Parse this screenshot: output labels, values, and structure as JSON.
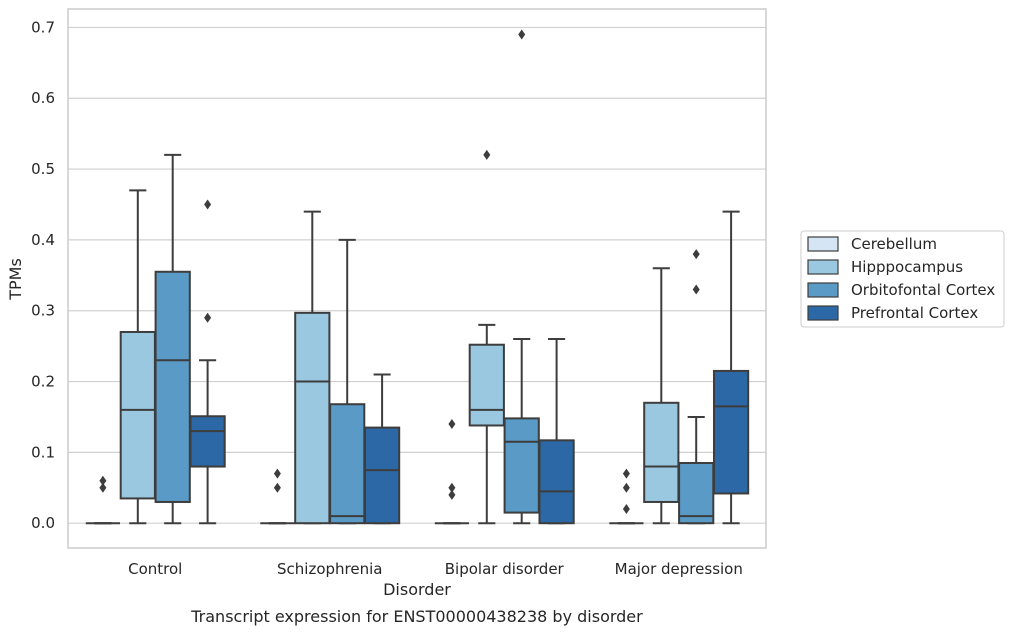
{
  "caption": "Transcript expression for ENST00000438238 by disorder",
  "chart_data": {
    "type": "box",
    "xlabel": "Disorder",
    "ylabel": "TPMs",
    "ylim": [
      -0.035,
      0.726
    ],
    "yticks": [
      "0.0",
      "0.1",
      "0.2",
      "0.3",
      "0.4",
      "0.5",
      "0.6",
      "0.7"
    ],
    "grid": "horizontal",
    "legend_position": "right",
    "categories": [
      "Control",
      "Schizophrenia",
      "Bipolar disorder",
      "Major depression"
    ],
    "series": [
      {
        "name": "Cerebellum",
        "color": "#d6e5f3",
        "boxes": [
          {
            "q1": 0,
            "median": 0,
            "q3": 0,
            "whisker_low": 0,
            "whisker_high": 0,
            "fliers": [
              0.05,
              0.06
            ]
          },
          {
            "q1": 0,
            "median": 0,
            "q3": 0,
            "whisker_low": 0,
            "whisker_high": 0,
            "fliers": [
              0.05,
              0.07
            ]
          },
          {
            "q1": 0,
            "median": 0,
            "q3": 0,
            "whisker_low": 0,
            "whisker_high": 0,
            "fliers": [
              0.04,
              0.05,
              0.14
            ]
          },
          {
            "q1": 0,
            "median": 0,
            "q3": 0,
            "whisker_low": 0,
            "whisker_high": 0,
            "fliers": [
              0.02,
              0.05,
              0.07
            ]
          }
        ]
      },
      {
        "name": "Hipppocampus",
        "color": "#9ac8e0",
        "boxes": [
          {
            "q1": 0.035,
            "median": 0.16,
            "q3": 0.27,
            "whisker_low": 0,
            "whisker_high": 0.47,
            "fliers": []
          },
          {
            "q1": 0,
            "median": 0.2,
            "q3": 0.297,
            "whisker_low": 0,
            "whisker_high": 0.44,
            "fliers": []
          },
          {
            "q1": 0.138,
            "median": 0.16,
            "q3": 0.252,
            "whisker_low": 0,
            "whisker_high": 0.28,
            "fliers": [
              0.52
            ]
          },
          {
            "q1": 0.03,
            "median": 0.08,
            "q3": 0.17,
            "whisker_low": 0,
            "whisker_high": 0.36,
            "fliers": []
          }
        ]
      },
      {
        "name": "Orbitofontal Cortex",
        "color": "#5a9ac6",
        "boxes": [
          {
            "q1": 0.03,
            "median": 0.23,
            "q3": 0.355,
            "whisker_low": 0,
            "whisker_high": 0.52,
            "fliers": []
          },
          {
            "q1": 0,
            "median": 0.01,
            "q3": 0.168,
            "whisker_low": 0,
            "whisker_high": 0.4,
            "fliers": []
          },
          {
            "q1": 0.015,
            "median": 0.115,
            "q3": 0.148,
            "whisker_low": 0,
            "whisker_high": 0.26,
            "fliers": [
              0.69
            ]
          },
          {
            "q1": 0,
            "median": 0.01,
            "q3": 0.085,
            "whisker_low": 0,
            "whisker_high": 0.15,
            "fliers": [
              0.33,
              0.38
            ]
          }
        ]
      },
      {
        "name": "Prefrontal Cortex",
        "color": "#2c68a6",
        "boxes": [
          {
            "q1": 0.08,
            "median": 0.13,
            "q3": 0.151,
            "whisker_low": 0,
            "whisker_high": 0.23,
            "fliers": [
              0.29,
              0.45
            ]
          },
          {
            "q1": 0,
            "median": 0.075,
            "q3": 0.135,
            "whisker_low": 0,
            "whisker_high": 0.21,
            "fliers": []
          },
          {
            "q1": 0,
            "median": 0.045,
            "q3": 0.117,
            "whisker_low": 0,
            "whisker_high": 0.26,
            "fliers": []
          },
          {
            "q1": 0.042,
            "median": 0.165,
            "q3": 0.215,
            "whisker_low": 0,
            "whisker_high": 0.44,
            "fliers": []
          }
        ]
      }
    ]
  }
}
